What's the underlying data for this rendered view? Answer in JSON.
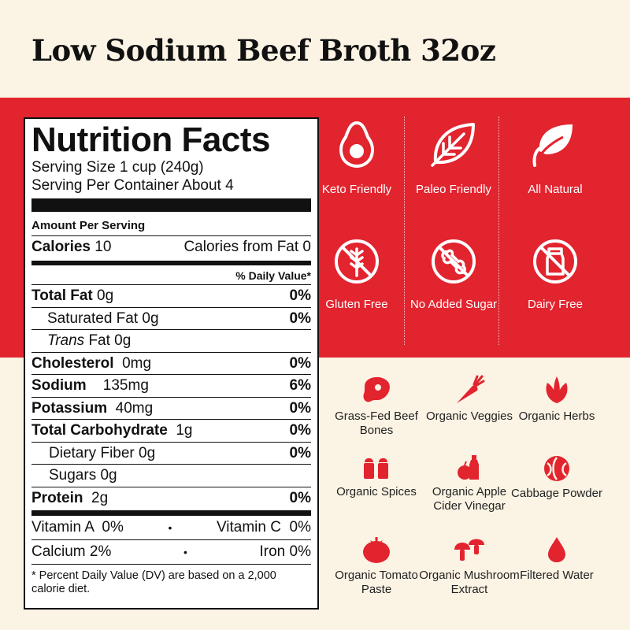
{
  "title": "Low Sodium Beef Broth 32oz",
  "colors": {
    "accent": "#e2242f",
    "background": "#fbf3e4"
  },
  "nutrition": {
    "heading": "Nutrition Facts",
    "serving_size": "Serving Size 1 cup (240g)",
    "servings": "Serving Per Container About 4",
    "amount_per_serving": "Amount Per Serving",
    "calories_label": "Calories",
    "calories_value": "10",
    "calories_from_fat": "Calories from Fat 0",
    "daily_value_header": "% Daily Value*",
    "rows": [
      {
        "label": "Total Fat",
        "amount": "0g",
        "dv": "0%"
      },
      {
        "label": "Saturated Fat 0g",
        "amount": "",
        "dv": "0%"
      },
      {
        "label": "Trans",
        "amount": "Fat 0g",
        "dv": ""
      },
      {
        "label": "Cholesterol",
        "amount": "0mg",
        "dv": "0%"
      },
      {
        "label": "Sodium",
        "amount": "135mg",
        "dv": "6%"
      },
      {
        "label": "Potassium",
        "amount": "40mg",
        "dv": "0%"
      },
      {
        "label": "Total Carbohydrate",
        "amount": "1g",
        "dv": "0%"
      },
      {
        "label": "Dietary Fiber 0g",
        "amount": "",
        "dv": "0%"
      },
      {
        "label": "Sugars 0g",
        "amount": "",
        "dv": ""
      },
      {
        "label": "Protein",
        "amount": "2g",
        "dv": "0%"
      }
    ],
    "vitamin_a": "Vitamin A  0%",
    "vitamin_c": "Vitamin C  0%",
    "calcium": "Calcium 2%",
    "iron": "Iron 0%",
    "bullet": "•",
    "footnote": "* Percent Daily Value (DV) are based on a 2,000 calorie diet."
  },
  "badges": [
    {
      "icon": "avocado-icon",
      "label": "Keto Friendly"
    },
    {
      "icon": "leaf-icon",
      "label": "Paleo Friendly"
    },
    {
      "icon": "leaves-icon",
      "label": "All Natural"
    },
    {
      "icon": "no-gluten-icon",
      "label": "Gluten Free"
    },
    {
      "icon": "no-sugar-icon",
      "label": "No Added Sugar"
    },
    {
      "icon": "no-dairy-icon",
      "label": "Dairy Free"
    }
  ],
  "ingredients": [
    {
      "icon": "steak-icon",
      "label": "Grass-Fed Beef Bones"
    },
    {
      "icon": "carrot-icon",
      "label": "Organic Veggies"
    },
    {
      "icon": "herbs-icon",
      "label": "Organic Herbs"
    },
    {
      "icon": "spice-shakers-icon",
      "label": "Organic Spices"
    },
    {
      "icon": "apple-vinegar-icon",
      "label": "Organic Apple Cider Vinegar"
    },
    {
      "icon": "cabbage-icon",
      "label": "Cabbage Powder"
    },
    {
      "icon": "tomato-icon",
      "label": "Organic Tomato Paste"
    },
    {
      "icon": "mushroom-icon",
      "label": "Organic Mushroom Extract"
    },
    {
      "icon": "water-drop-icon",
      "label": "Filtered Water"
    }
  ]
}
